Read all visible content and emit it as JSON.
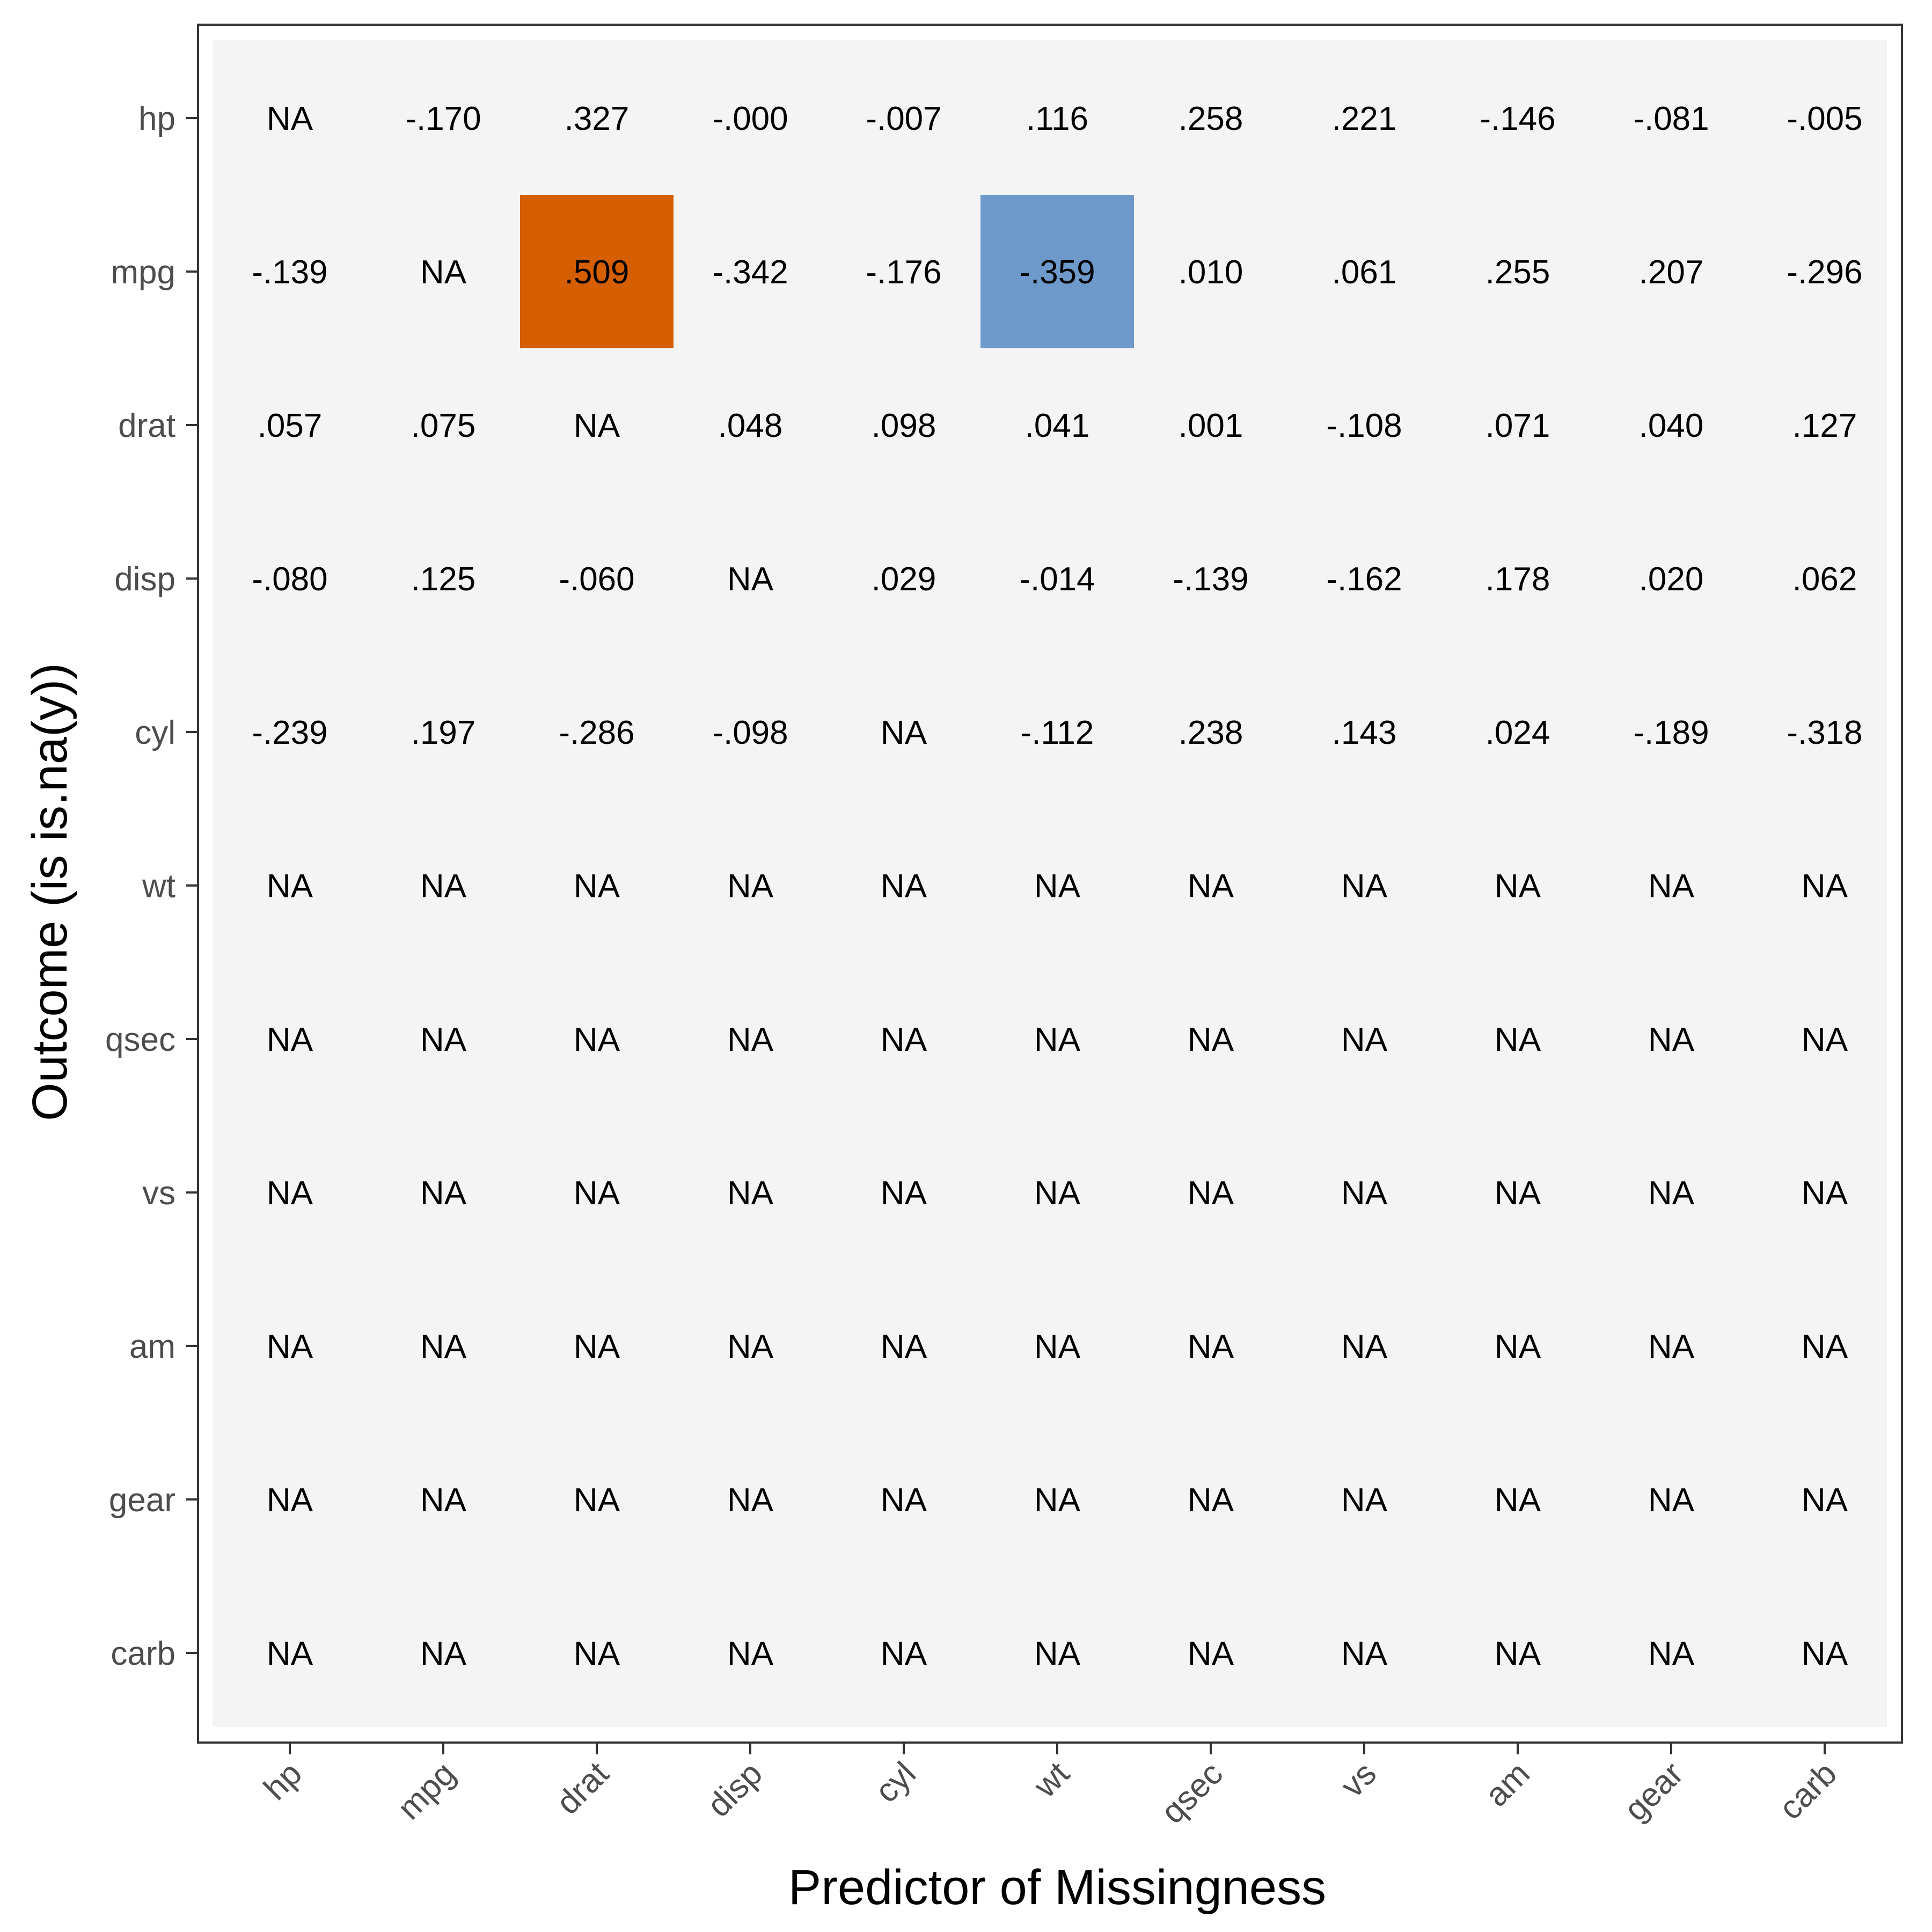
{
  "chart_data": {
    "type": "heatmap",
    "title": "",
    "xlabel": "Predictor of Missingness",
    "ylabel": "Outcome (is is.na(y))",
    "grid": false,
    "legend": "none",
    "colors": {
      "panel_background": "#f4f4f4",
      "panel_border": "#333333",
      "positive_highlight": "#d55e00",
      "negative_highlight": "#6e9acb"
    },
    "x_categories": [
      "hp",
      "mpg",
      "drat",
      "disp",
      "cyl",
      "wt",
      "qsec",
      "vs",
      "am",
      "gear",
      "carb"
    ],
    "y_categories": [
      "hp",
      "mpg",
      "drat",
      "disp",
      "cyl",
      "wt",
      "qsec",
      "vs",
      "am",
      "gear",
      "carb"
    ],
    "cells": [
      [
        "NA",
        "-.170",
        ".327",
        "-.000",
        "-.007",
        ".116",
        ".258",
        ".221",
        "-.146",
        "-.081",
        "-.005"
      ],
      [
        "-.139",
        "NA",
        ".509",
        "-.342",
        "-.176",
        "-.359",
        ".010",
        ".061",
        ".255",
        ".207",
        "-.296"
      ],
      [
        ".057",
        ".075",
        "NA",
        ".048",
        ".098",
        ".041",
        ".001",
        "-.108",
        ".071",
        ".040",
        ".127"
      ],
      [
        "-.080",
        ".125",
        "-.060",
        "NA",
        ".029",
        "-.014",
        "-.139",
        "-.162",
        ".178",
        ".020",
        ".062"
      ],
      [
        "-.239",
        ".197",
        "-.286",
        "-.098",
        "NA",
        "-.112",
        ".238",
        ".143",
        ".024",
        "-.189",
        "-.318"
      ],
      [
        "NA",
        "NA",
        "NA",
        "NA",
        "NA",
        "NA",
        "NA",
        "NA",
        "NA",
        "NA",
        "NA"
      ],
      [
        "NA",
        "NA",
        "NA",
        "NA",
        "NA",
        "NA",
        "NA",
        "NA",
        "NA",
        "NA",
        "NA"
      ],
      [
        "NA",
        "NA",
        "NA",
        "NA",
        "NA",
        "NA",
        "NA",
        "NA",
        "NA",
        "NA",
        "NA"
      ],
      [
        "NA",
        "NA",
        "NA",
        "NA",
        "NA",
        "NA",
        "NA",
        "NA",
        "NA",
        "NA",
        "NA"
      ],
      [
        "NA",
        "NA",
        "NA",
        "NA",
        "NA",
        "NA",
        "NA",
        "NA",
        "NA",
        "NA",
        "NA"
      ],
      [
        "NA",
        "NA",
        "NA",
        "NA",
        "NA",
        "NA",
        "NA",
        "NA",
        "NA",
        "NA",
        "NA"
      ]
    ],
    "highlighted_cells": [
      {
        "outcome": "mpg",
        "predictor": "drat",
        "value": 0.509,
        "color": "#d55e00"
      },
      {
        "outcome": "mpg",
        "predictor": "wt",
        "value": -0.359,
        "color": "#6e9acb"
      }
    ]
  }
}
